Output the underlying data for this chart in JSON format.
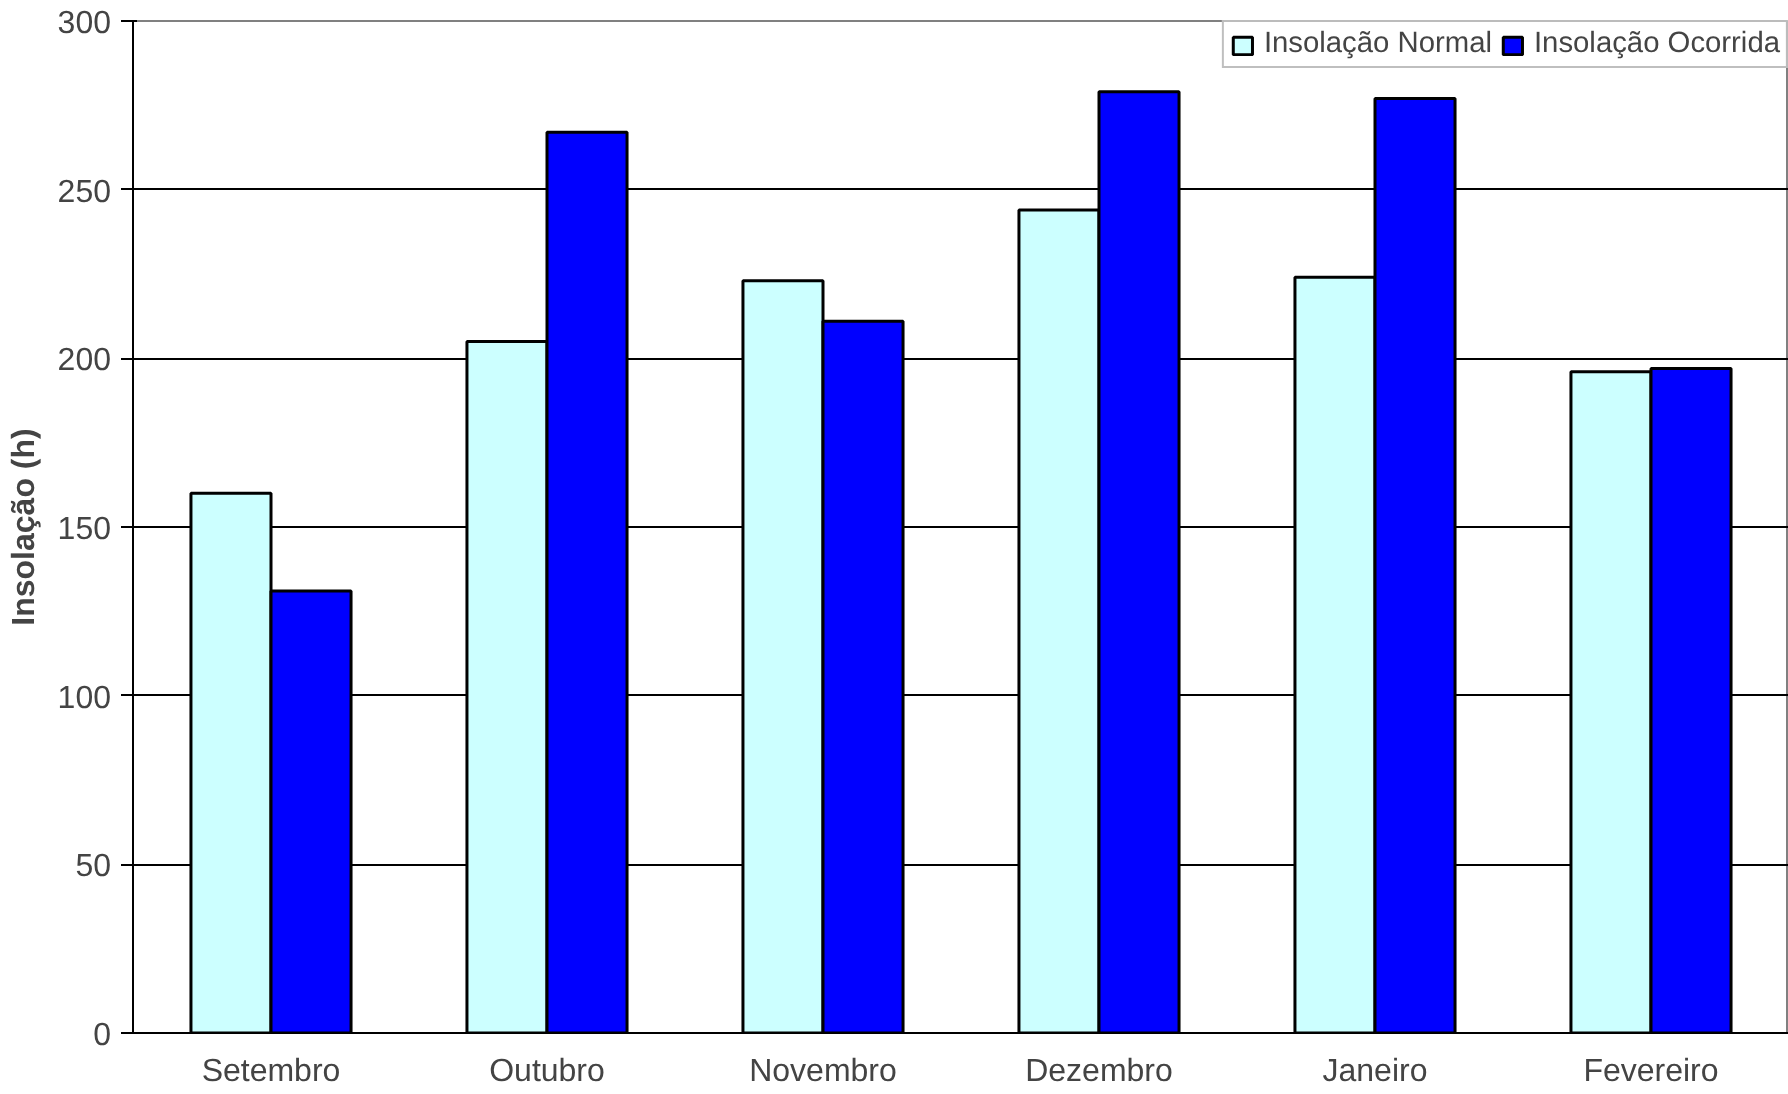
{
  "chart_data": {
    "type": "bar",
    "ylabel": "Insolação (h)",
    "categories": [
      "Setembro",
      "Outubro",
      "Novembro",
      "Dezembro",
      "Janeiro",
      "Fevereiro"
    ],
    "series": [
      {
        "name": "Insolação Normal",
        "color": "#ccffff",
        "values": [
          160,
          205,
          223,
          244,
          224,
          196
        ]
      },
      {
        "name": "Insolação Ocorrida",
        "color": "#0000ff",
        "values": [
          131,
          267,
          211,
          279,
          277,
          197
        ]
      }
    ],
    "ylim": [
      0,
      300
    ],
    "yticks": [
      0,
      50,
      100,
      150,
      200,
      250,
      300
    ],
    "grid": "y",
    "legend": "top right"
  }
}
